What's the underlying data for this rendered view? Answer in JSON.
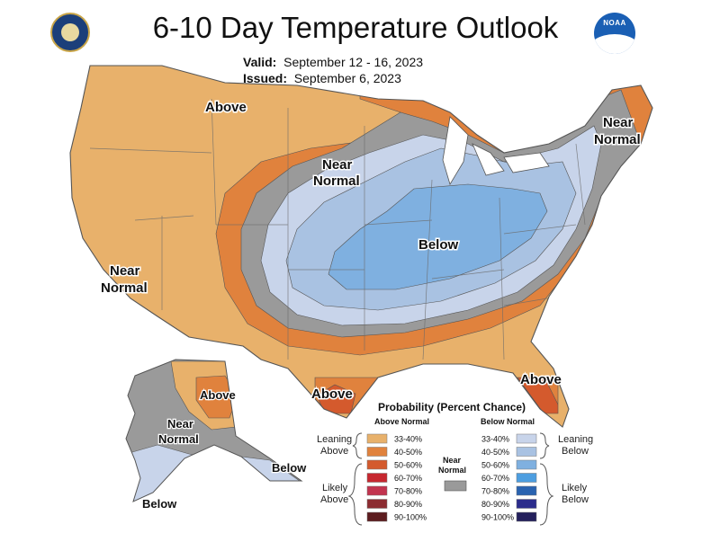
{
  "title": "6-10 Day Temperature Outlook",
  "valid_label": "Valid:",
  "valid_value": "September 12 - 16, 2023",
  "issued_label": "Issued:",
  "issued_value": "September 6, 2023",
  "logos": {
    "left": "commerce-seal-icon",
    "right": "noaa-logo-icon",
    "right_text": "NOAA"
  },
  "colors": {
    "above": [
      "#e8b16b",
      "#e0823d",
      "#d45a2d",
      "#c6272f",
      "#c2344f",
      "#8c2c31",
      "#5c1c1f"
    ],
    "below": [
      "#c8d4ea",
      "#a9c2e2",
      "#7fb0e0",
      "#4d9ee0",
      "#2a63b0",
      "#2b2c8c",
      "#24205c"
    ],
    "near_normal": "#9a9a9a",
    "land_border": "#555555"
  },
  "map_labels": {
    "above_north": "Above",
    "near_normal_plains_1": "Near",
    "near_normal_plains_2": "Normal",
    "near_normal_ne_1": "Near",
    "near_normal_ne_2": "Normal",
    "near_normal_sw_1": "Near",
    "near_normal_sw_2": "Normal",
    "below_central": "Below",
    "above_florida": "Above",
    "above_texas": "Above",
    "alaska_above": "Above",
    "alaska_near_1": "Near",
    "alaska_near_2": "Normal",
    "alaska_below_sw": "Below",
    "alaska_below_se": "Below"
  },
  "legend": {
    "title": "Probability (Percent Chance)",
    "above_header": "Above Normal",
    "below_header": "Below Normal",
    "near_normal_1": "Near",
    "near_normal_2": "Normal",
    "leaning_above_1": "Leaning",
    "leaning_above_2": "Above",
    "likely_above_1": "Likely",
    "likely_above_2": "Above",
    "leaning_below_1": "Leaning",
    "leaning_below_2": "Below",
    "likely_below_1": "Likely",
    "likely_below_2": "Below",
    "ranges": [
      "33-40%",
      "40-50%",
      "50-60%",
      "60-70%",
      "70-80%",
      "80-90%",
      "90-100%"
    ]
  }
}
